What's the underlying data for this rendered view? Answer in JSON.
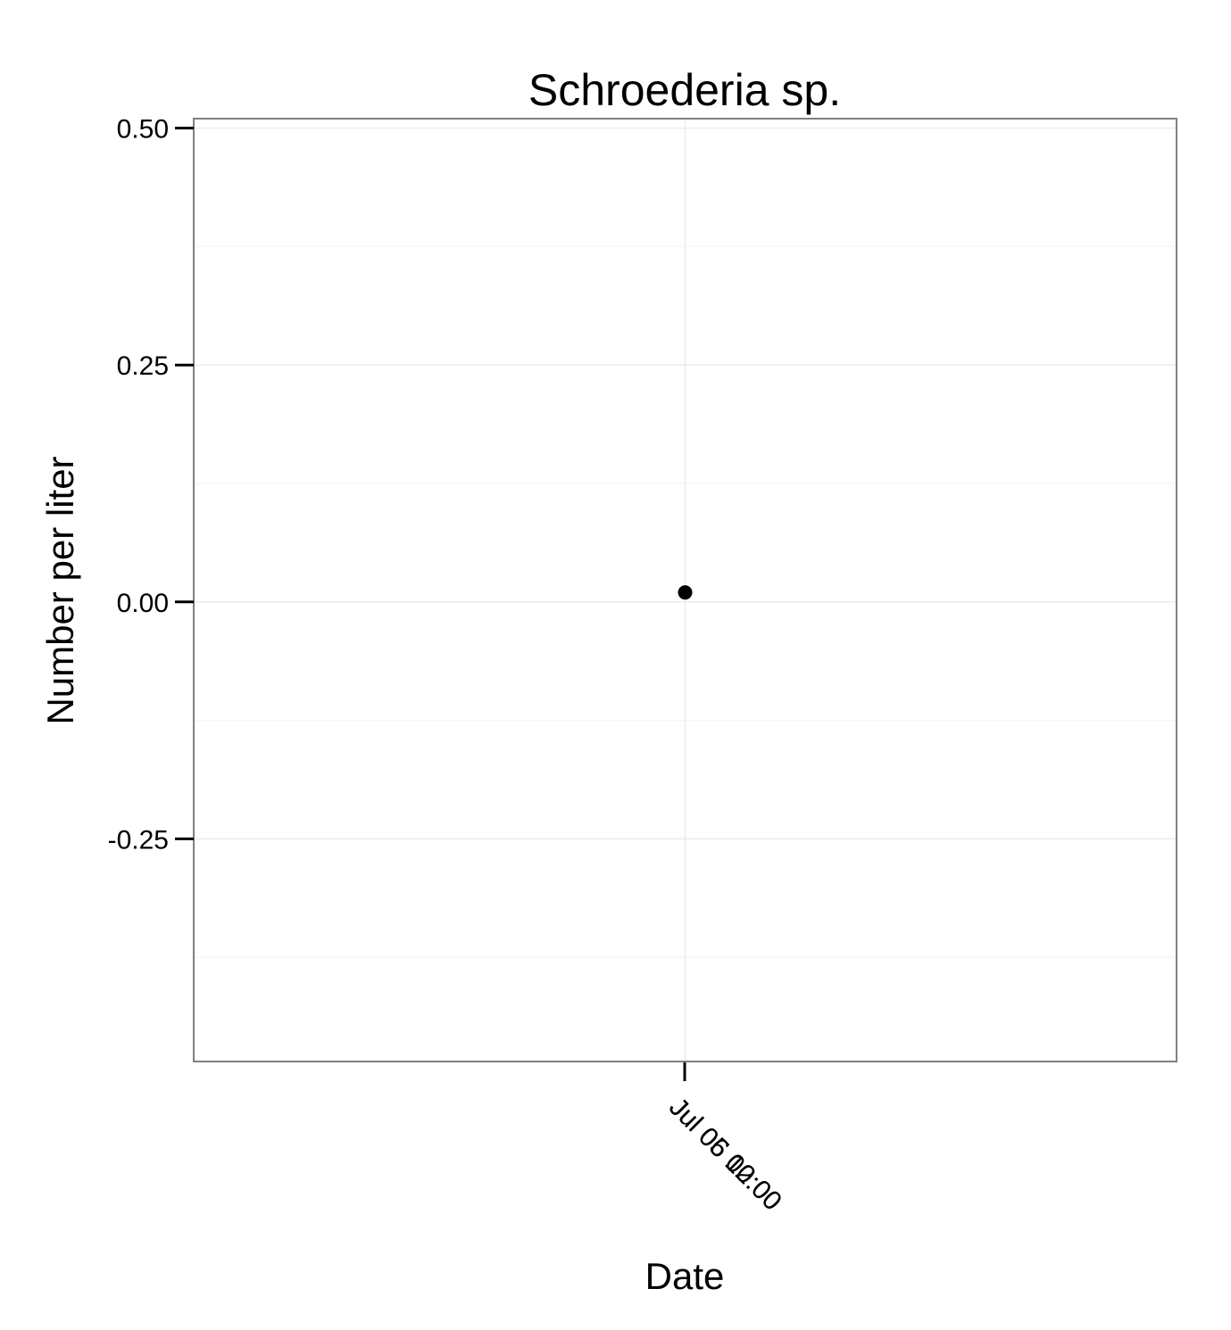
{
  "chart_data": {
    "type": "scatter",
    "title": "Schroederia sp.",
    "xlabel": "Date",
    "ylabel": "Number per liter",
    "x_tick_labels": [
      "Jul 05 12:00",
      "Jul 06 00:00"
    ],
    "y_ticks": [
      -0.25,
      0.0,
      0.25,
      0.5
    ],
    "y_tick_labels": [
      "-0.25",
      "0.00",
      "0.25",
      "0.50"
    ],
    "ylim": [
      -0.485,
      0.51
    ],
    "grid": true,
    "series": [
      {
        "values": [
          {
            "x": "Jul 06 00:00",
            "y": 0.01
          }
        ]
      }
    ],
    "colors": {
      "point": "#000000",
      "grid": "#ebebeb",
      "panel_border": "#808080",
      "background": "#ffffff"
    }
  }
}
